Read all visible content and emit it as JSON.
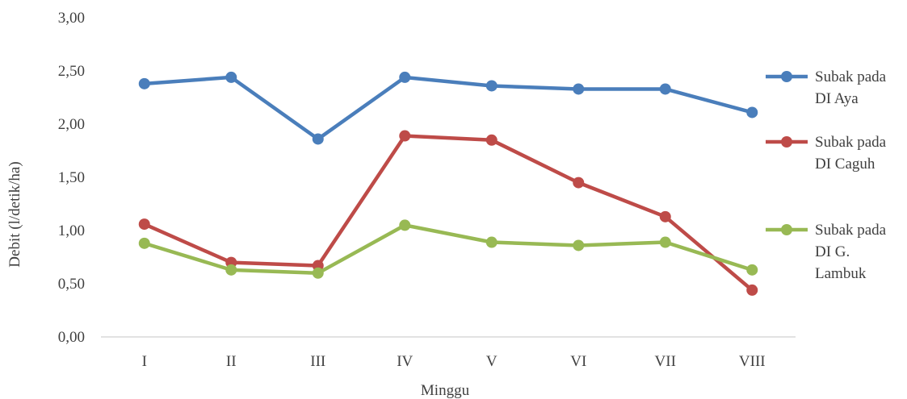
{
  "chart_data": {
    "type": "line",
    "categories": [
      "I",
      "II",
      "III",
      "IV",
      "V",
      "VI",
      "VII",
      "VIII"
    ],
    "series": [
      {
        "name_lines": [
          "Subak pada",
          "DI Aya"
        ],
        "color": "#4a7ebb",
        "values": [
          2.38,
          2.44,
          1.86,
          2.44,
          2.36,
          2.33,
          2.33,
          2.11
        ]
      },
      {
        "name_lines": [
          "Subak pada",
          "DI Caguh"
        ],
        "color": "#be4b48",
        "values": [
          1.06,
          0.7,
          0.67,
          1.89,
          1.85,
          1.45,
          1.13,
          0.44
        ]
      },
      {
        "name_lines": [
          "Subak pada",
          "DI G.",
          "Lambuk"
        ],
        "color": "#98b954",
        "values": [
          0.88,
          0.63,
          0.6,
          1.05,
          0.89,
          0.86,
          0.89,
          0.63
        ]
      }
    ],
    "xlabel": "Minggu",
    "ylabel": "Debit (l/detik/ha)",
    "ylim": [
      0,
      3
    ],
    "yticks": [
      "0,00",
      "0,50",
      "1,00",
      "1,50",
      "2,00",
      "2,50",
      "3,00"
    ],
    "ytick_values": [
      0,
      0.5,
      1,
      1.5,
      2,
      2.5,
      3
    ],
    "grid": false,
    "legend_position": "right"
  }
}
